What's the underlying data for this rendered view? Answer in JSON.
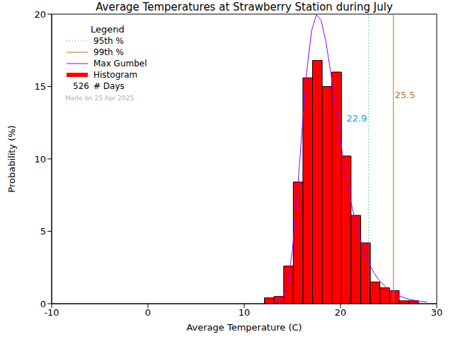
{
  "chart_data": {
    "type": "histogram",
    "title": "Average Temperatures at Strawberry Station during July",
    "x_label": "Average Temperature (C)",
    "y_label": "Probability (%)",
    "legend_title": "Legend",
    "legend": "upper left",
    "grid": false,
    "xlim": [
      -10,
      30
    ],
    "xticks": [
      -10,
      0,
      10,
      20,
      30
    ],
    "ylim": [
      0,
      20
    ],
    "yticks": [
      0,
      5,
      10,
      15,
      20
    ],
    "name": "Histogram",
    "color": "#ff0000",
    "bins": [
      12.1,
      13.1,
      14.1,
      15.1,
      16.1,
      17.1,
      18.1,
      19.1,
      20.1,
      21.1,
      22.1,
      23.1,
      24.1,
      25.1,
      26.1,
      27.1,
      28.1
    ],
    "values": [
      0.4,
      0.5,
      2.6,
      8.4,
      15.6,
      16.8,
      15.0,
      16.0,
      10.2,
      6.1,
      4.2,
      1.5,
      1.1,
      0.9,
      0.2,
      0.2
    ],
    "series": [
      {
        "name": "Max Gumbel",
        "type": "line",
        "color": "#8a00ff",
        "x": [
          13,
          14,
          14.5,
          15,
          15.5,
          16,
          16.5,
          17,
          17.5,
          18,
          18.5,
          19,
          19.5,
          20,
          20.5,
          21,
          21.5,
          22,
          22.5,
          23,
          23.5,
          24,
          25,
          26,
          27,
          28,
          29
        ],
        "values": [
          0,
          0.33,
          1.33,
          3.65,
          7.43,
          11.94,
          16.04,
          18.85,
          19.97,
          19.56,
          18.05,
          15.91,
          13.55,
          11.25,
          9.14,
          7.31,
          5.79,
          4.54,
          3.53,
          2.74,
          2.11,
          1.63,
          0.96,
          0.56,
          0.33,
          0.19,
          0.11
        ]
      }
    ],
    "percentiles": [
      {
        "name": "95th %",
        "value": 22.9,
        "color": "#1aa0c8",
        "line_style": "dotted"
      },
      {
        "name": "99th %",
        "value": 25.5,
        "color": "#b87333",
        "line_style": "solid"
      }
    ],
    "days": 526,
    "days_label": "# Days",
    "note": "Made on 25 Apr 2025"
  }
}
